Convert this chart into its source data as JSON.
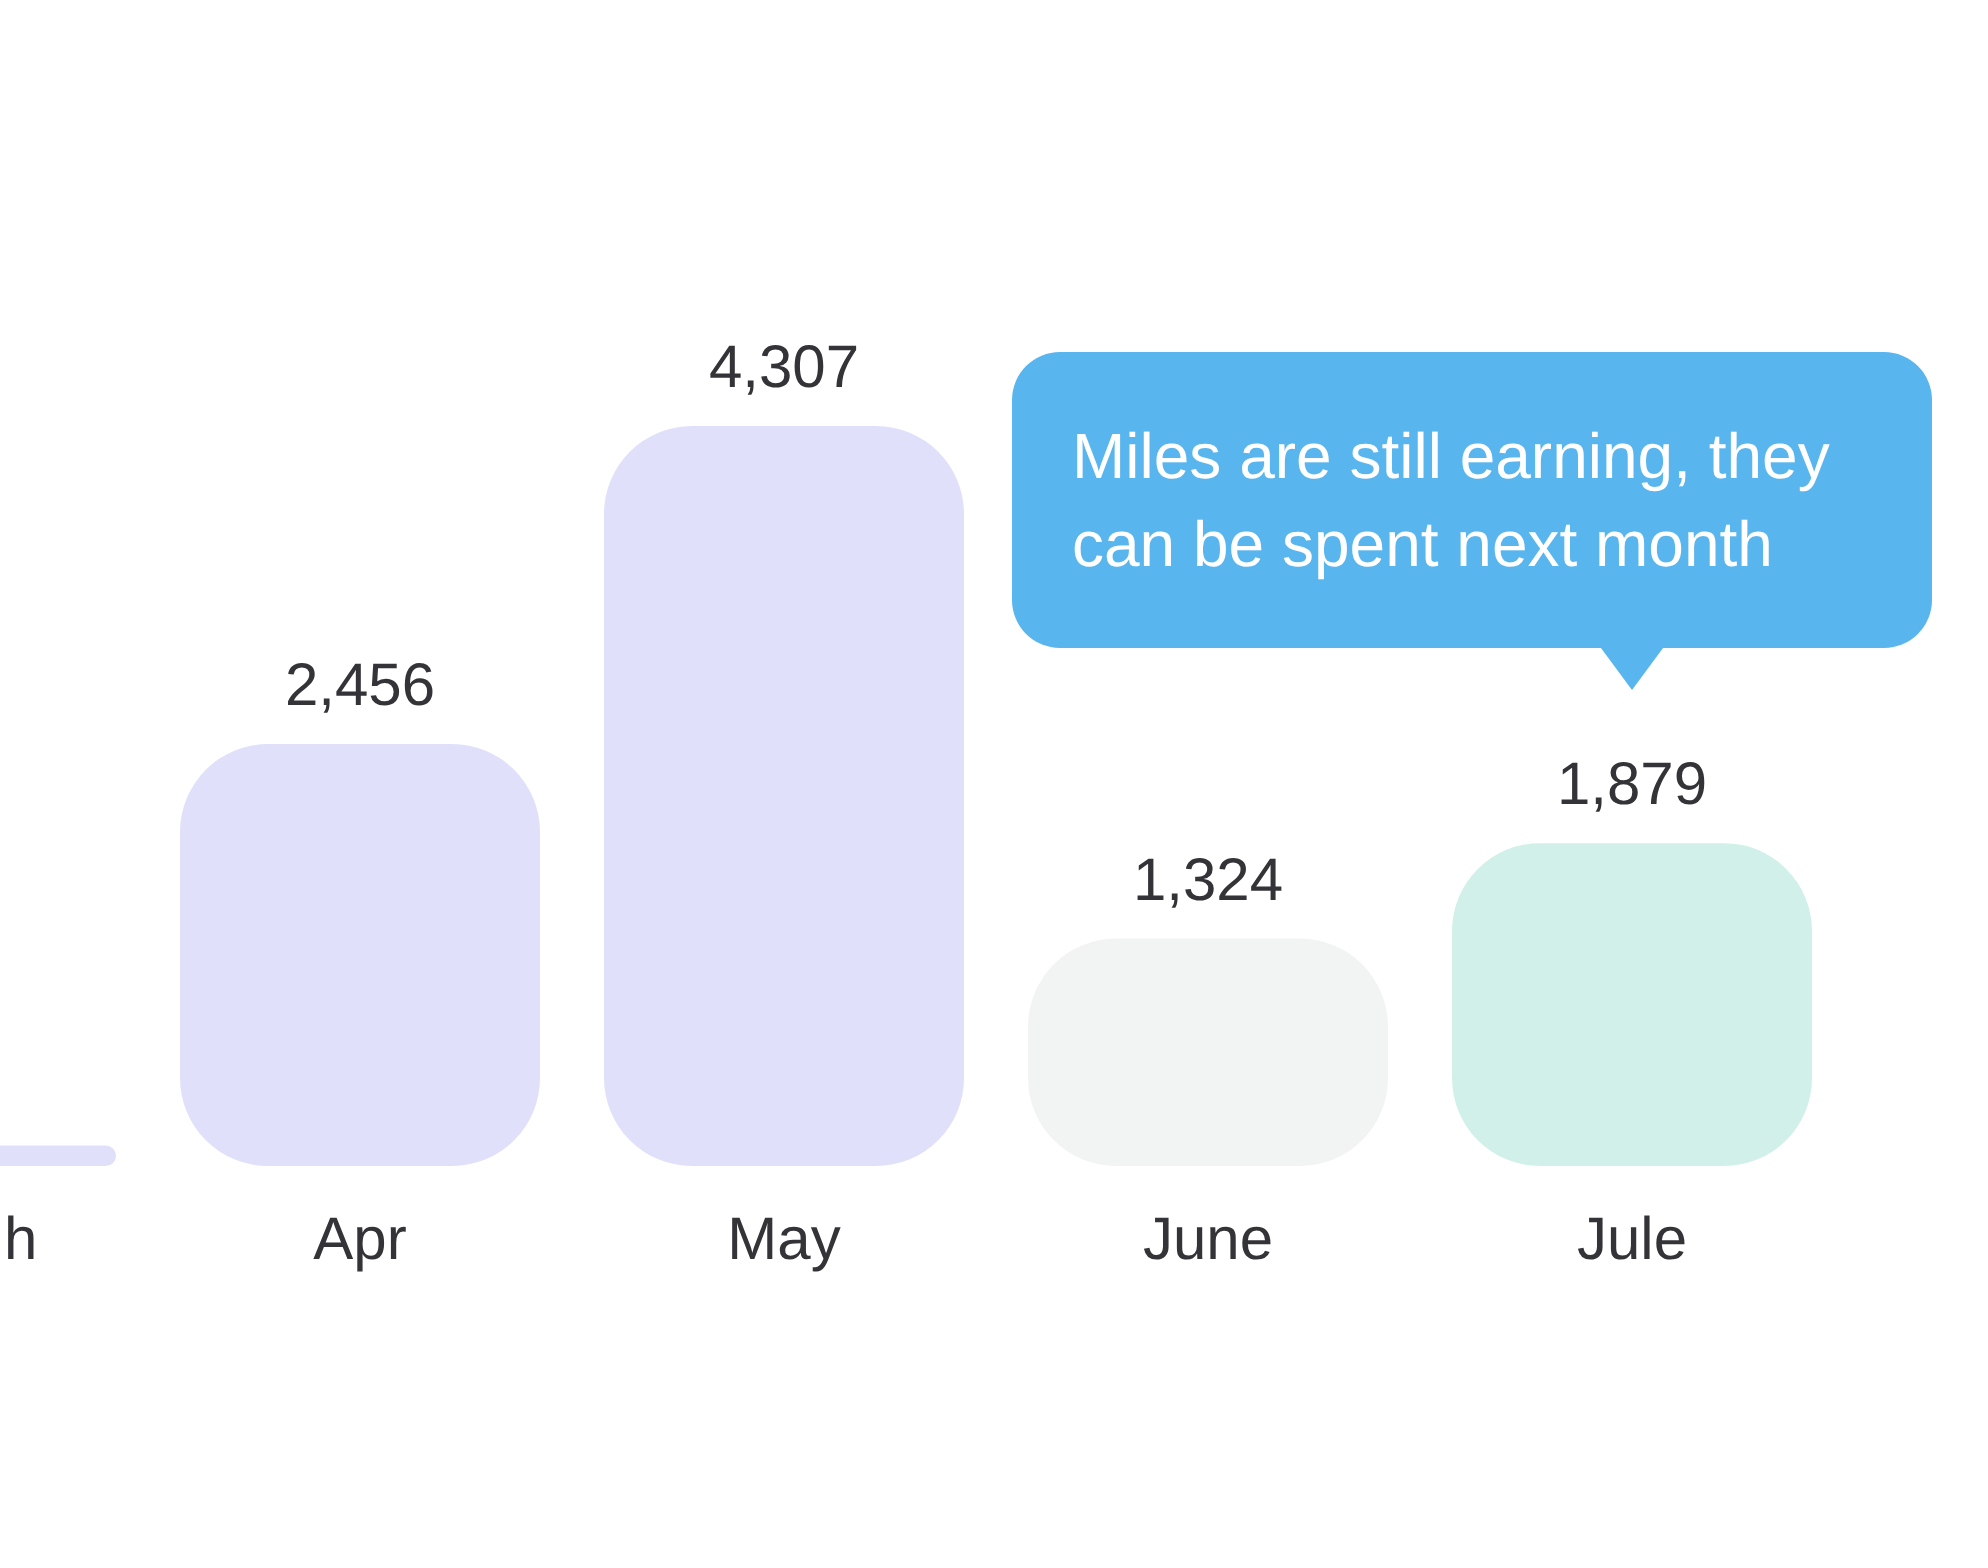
{
  "chart_data": {
    "type": "bar",
    "categories": [
      "h",
      "Apr",
      "May",
      "June",
      "Jule"
    ],
    "values": [
      120,
      2456,
      4307,
      1324,
      1879
    ],
    "colors": [
      "#e0e0fb",
      "#e0e0fb",
      "#e0e0fb",
      "#f2f4f3",
      "#d1f0e9"
    ],
    "value_labels": [
      null,
      "2,456",
      "4,307",
      "1,324",
      "1,879"
    ],
    "annotations": [
      "Miles are still earning, they can be spent next month"
    ]
  }
}
